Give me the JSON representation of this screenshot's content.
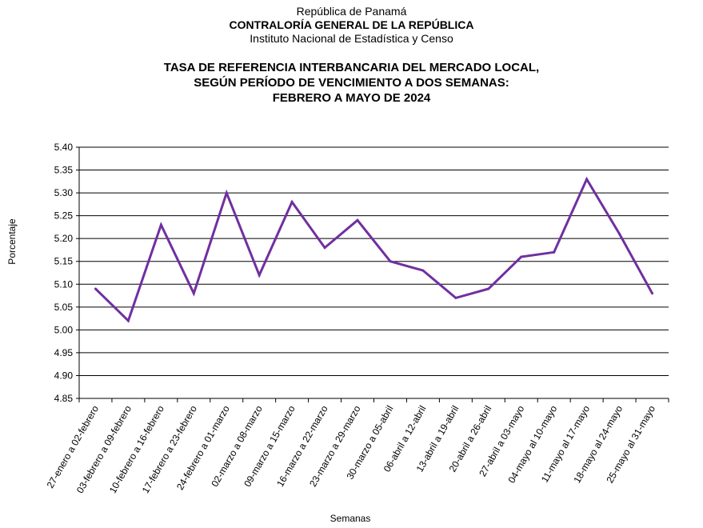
{
  "header": {
    "line1": "República de Panamá",
    "line2": "CONTRALORÍA GENERAL DE LA REPÚBLICA",
    "line3": "Instituto Nacional de Estadística y Censo"
  },
  "chart_data": {
    "type": "line",
    "title": [
      "TASA DE REFERENCIA INTERBANCARIA DEL MERCADO LOCAL,",
      "SEGÚN PERÍODO DE VENCIMIENTO A DOS SEMANAS:",
      "FEBRERO A MAYO DE 2024"
    ],
    "xlabel": "Semanas",
    "ylabel": "Porcentaje",
    "ylim": [
      4.85,
      5.4
    ],
    "yticks": [
      "5.40",
      "5.35",
      "5.30",
      "5.25",
      "5.20",
      "5.15",
      "5.10",
      "5.05",
      "5.00",
      "4.95",
      "4.90",
      "4.85"
    ],
    "grid": true,
    "line_color": "#7030a0",
    "categories": [
      "27-enero a 02-febrero",
      "03-febrero a 09-febrero",
      "10-febrero a 16-febrero",
      "17-febrero a 23-febrero",
      "24-febrero a 01-marzo",
      "02-marzo a 08-marzo",
      "09-marzo a 15-marzo",
      "16-marzo a 22-marzo",
      "23-marzo a 29-marzo",
      "30-marzo a 05-abril",
      "06-abril a 12-abril",
      "13-abril a 19-abril",
      "20-abril a 26-abril",
      "27-abril a 03-mayo",
      "04-mayo al 10-mayo",
      "11-mayo al 17-mayo",
      "18-mayo al 24-mayo",
      "25-mayo al 31-mayo"
    ],
    "values": [
      5.09,
      5.02,
      5.23,
      5.08,
      5.3,
      5.12,
      5.28,
      5.18,
      5.24,
      5.15,
      5.13,
      5.07,
      5.09,
      5.16,
      5.17,
      5.33,
      5.21,
      5.08
    ]
  }
}
